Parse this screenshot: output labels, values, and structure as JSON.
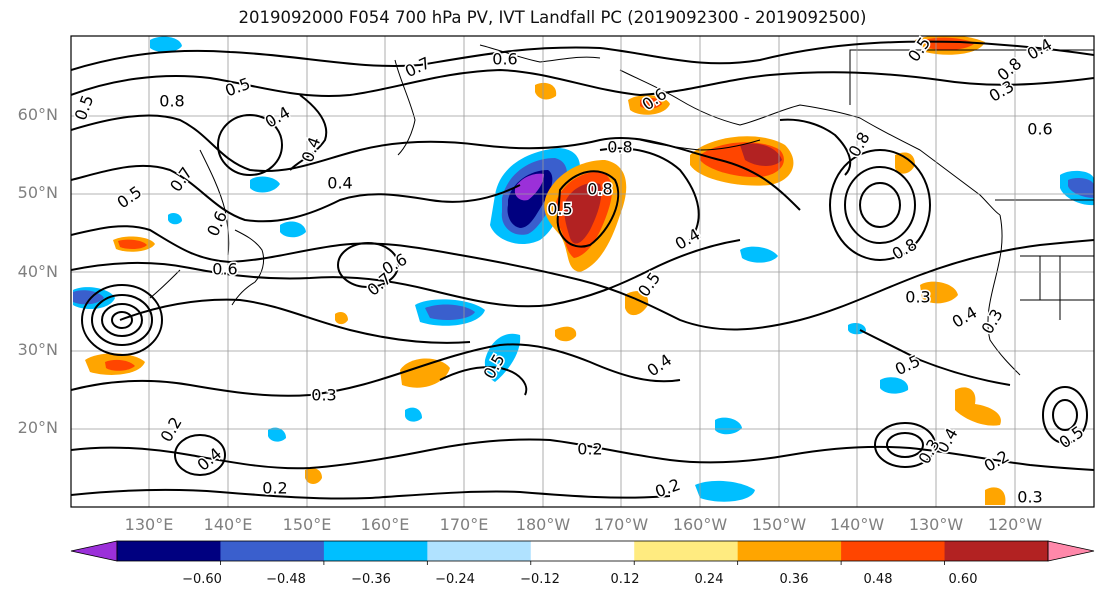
{
  "title": "2019092000 F054 700 hPa PV, IVT Landfall PC (2019092300 - 2019092500)",
  "lat_labels": [
    "60°N",
    "50°N",
    "40°N",
    "30°N",
    "20°N"
  ],
  "lon_labels": [
    "130°E",
    "140°E",
    "150°E",
    "160°E",
    "170°E",
    "180°W",
    "170°W",
    "160°W",
    "150°W",
    "140°W",
    "130°W",
    "120°W"
  ],
  "contour_labels": [
    "0.6",
    "0.7",
    "0.5",
    "0.8",
    "0.5",
    "0.4",
    "0.8",
    "0.5",
    "0.4",
    "0.5",
    "0.4",
    "0.7",
    "0.6",
    "0.6",
    "0.4",
    "0.6",
    "0.7",
    "0.8",
    "0.6",
    "0.5",
    "0.8",
    "0.8",
    "0.6",
    "0.3",
    "0.5",
    "0.4",
    "0.3",
    "0.5",
    "0.3",
    "0.4",
    "0.2",
    "0.4",
    "0.2",
    "0.2",
    "0.2",
    "0.5",
    "0.4",
    "0.3",
    "0.2",
    "0.3",
    "0.5",
    "0.4",
    "0.3",
    "0.6",
    "0.8"
  ],
  "colorbar": {
    "ticks": [
      "−0.60",
      "−0.48",
      "−0.36",
      "−0.24",
      "−0.12",
      "0.12",
      "0.24",
      "0.36",
      "0.48",
      "0.60"
    ],
    "colors": [
      "#9b30d9",
      "#000080",
      "#3a5fcd",
      "#00bfff",
      "#b0e2ff",
      "#ffffff",
      "#ffeb80",
      "#ffa500",
      "#ff4500",
      "#b22222",
      "#ff88aa"
    ]
  }
}
